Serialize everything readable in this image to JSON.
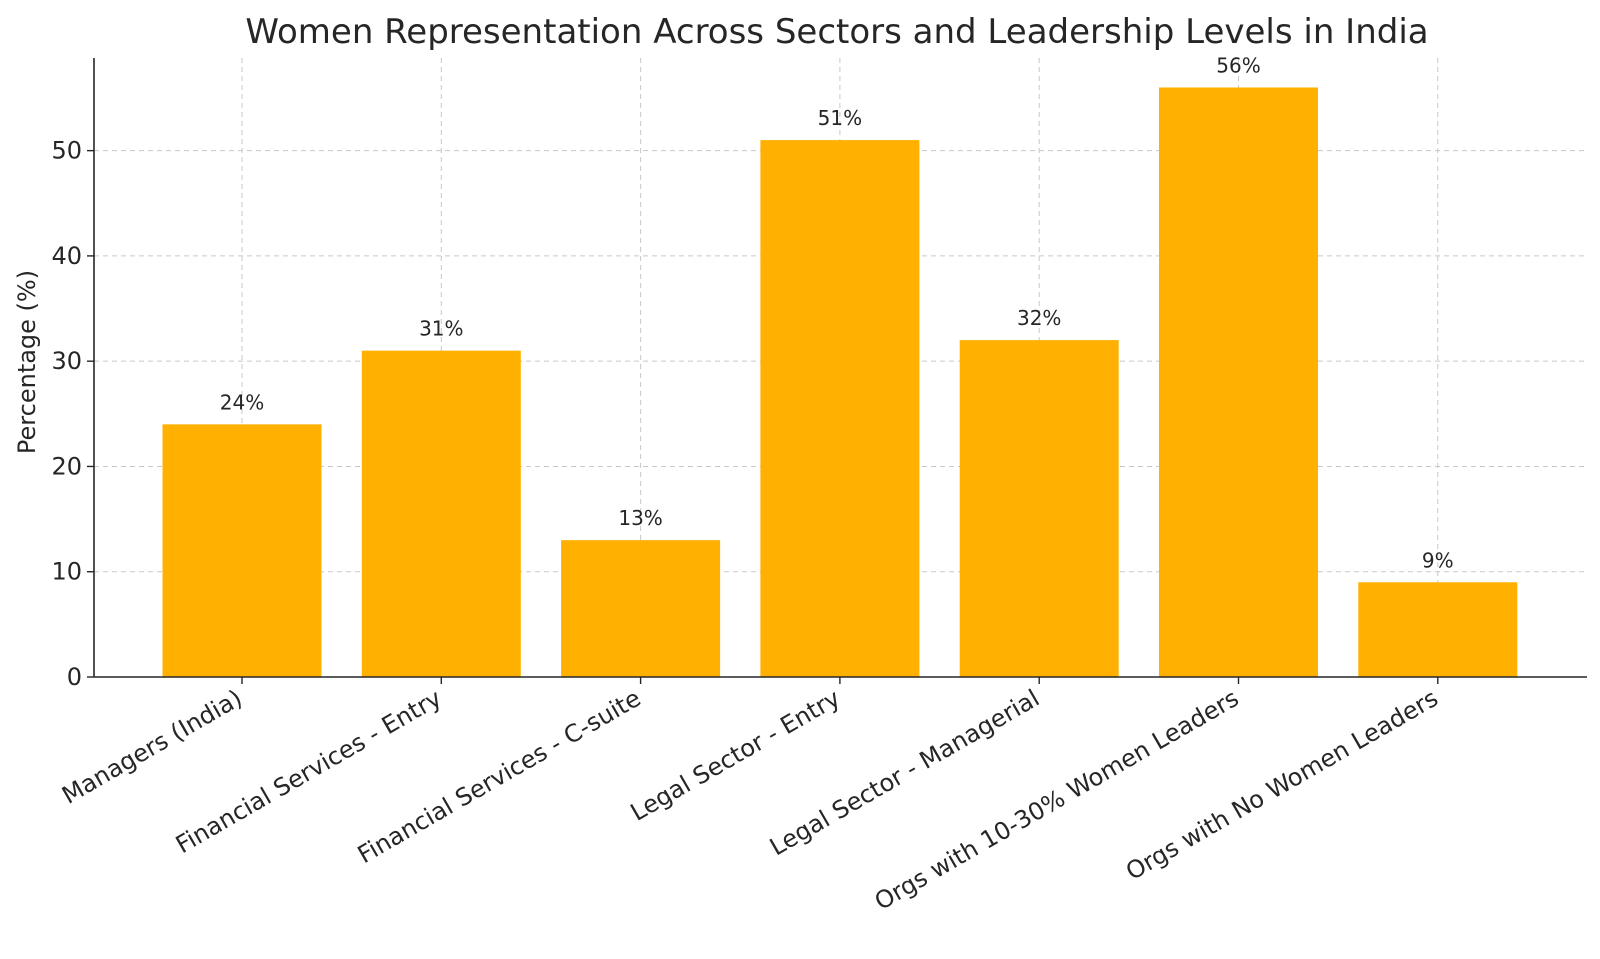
{
  "chart_data": {
    "type": "bar",
    "title": "Women Representation Across Sectors and Leadership Levels in India",
    "xlabel": "",
    "ylabel": "Percentage (%)",
    "categories": [
      "Managers (India)",
      "Financial Services - Entry",
      "Financial Services - C-suite",
      "Legal Sector - Entry",
      "Legal Sector - Managerial",
      "Orgs with 10-30% Women Leaders",
      "Orgs with No Women Leaders"
    ],
    "values": [
      24,
      31,
      13,
      51,
      32,
      56,
      9
    ],
    "data_labels": [
      "24%",
      "31%",
      "13%",
      "51%",
      "32%",
      "56%",
      "9%"
    ],
    "ylim": [
      0,
      58.8
    ],
    "yticks": [
      0,
      10,
      20,
      30,
      40,
      50
    ],
    "grid": true,
    "bar_color": "#FFB000"
  }
}
